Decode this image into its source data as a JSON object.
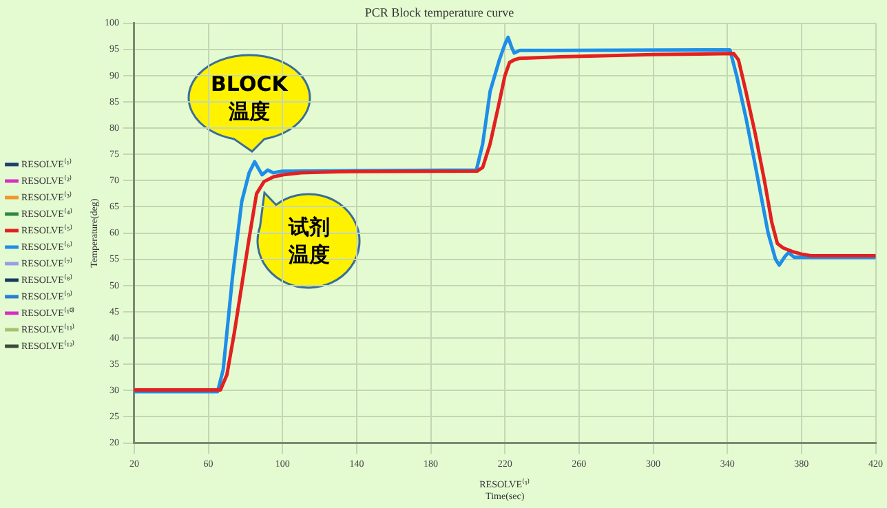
{
  "chart_data": {
    "type": "line",
    "title": "PCR Block temperature curve",
    "xlabel": "RESOLVE⁽¹⁾\nTime(sec)",
    "ylabel": "Temperature(deg)",
    "xlim": [
      20,
      420
    ],
    "xticks": [
      20,
      60,
      100,
      140,
      180,
      220,
      260,
      300,
      340,
      380,
      420
    ],
    "ylim": [
      20,
      100
    ],
    "yticks": [
      20,
      25,
      30,
      35,
      40,
      45,
      50,
      55,
      60,
      65,
      70,
      75,
      80,
      85,
      90,
      95,
      100
    ],
    "grid": true,
    "legend": "left",
    "marker": "none",
    "line_style": "solid",
    "annotations": [
      {
        "text": "BLOCK 温度",
        "x": 85,
        "y": 73.6
      },
      {
        "text": "试剂温度",
        "x": 86,
        "y": 68.5
      }
    ],
    "series": [
      {
        "name": "RESOLVE⁽¹⁾",
        "color": "#1f3f6e"
      },
      {
        "name": "RESOLVE⁽²⁾",
        "color": "#d633c0"
      },
      {
        "name": "RESOLVE⁽³⁾",
        "color": "#f0962a"
      },
      {
        "name": "RESOLVE⁽⁴⁾",
        "color": "#2a8a3e"
      },
      {
        "name": "RESOLVE⁽⁵⁾",
        "color": "#e32020",
        "x": [
          20,
          66.5,
          70,
          74,
          78,
          82,
          86,
          90,
          95,
          100,
          110,
          130,
          205,
          208,
          212,
          217,
          220,
          222.5,
          225,
          228,
          250,
          300,
          343.4,
          346,
          350,
          355,
          360,
          364,
          367,
          370,
          375,
          380,
          385,
          420
        ],
        "values": [
          30.1,
          30.1,
          33,
          41,
          50,
          59,
          67.5,
          69.8,
          70.7,
          71.1,
          71.5,
          71.7,
          71.8,
          72.5,
          77,
          85,
          90,
          92.5,
          93,
          93.3,
          93.6,
          94,
          94.2,
          93,
          87,
          79,
          70,
          62,
          58,
          57.2,
          56.5,
          56,
          55.7,
          55.7
        ]
      },
      {
        "name": "RESOLVE⁽⁶⁾",
        "color": "#1e8ee8",
        "x": [
          20,
          65,
          68,
          73,
          78,
          82,
          85,
          87,
          89,
          92,
          95,
          100,
          204.6,
          208,
          212,
          217,
          220,
          221.7,
          223.5,
          225,
          228,
          250,
          341.4,
          345,
          350,
          355,
          362,
          366,
          368,
          371,
          373,
          376,
          420
        ],
        "values": [
          29.8,
          29.8,
          34,
          51.6,
          66,
          71.5,
          73.6,
          72.3,
          71.1,
          72,
          71.5,
          71.8,
          72,
          77,
          87,
          93,
          96,
          97.3,
          95.5,
          94.3,
          94.8,
          94.8,
          94.9,
          90,
          82,
          73,
          60,
          55,
          53.9,
          55.5,
          56.3,
          55.4,
          55.4
        ]
      },
      {
        "name": "RESOLVE⁽⁷⁾",
        "color": "#9a9ce6"
      },
      {
        "name": "RESOLVE⁽⁸⁾",
        "color": "#153a5c"
      },
      {
        "name": "RESOLVE⁽⁹⁾",
        "color": "#2a7fd0"
      },
      {
        "name": "RESOLVE⁽¹⁰⁾",
        "color": "#d62ec6"
      },
      {
        "name": "RESOLVE⁽¹¹⁾",
        "color": "#a8c070"
      },
      {
        "name": "RESOLVE⁽¹²⁾",
        "color": "#3c4a3c"
      }
    ]
  }
}
